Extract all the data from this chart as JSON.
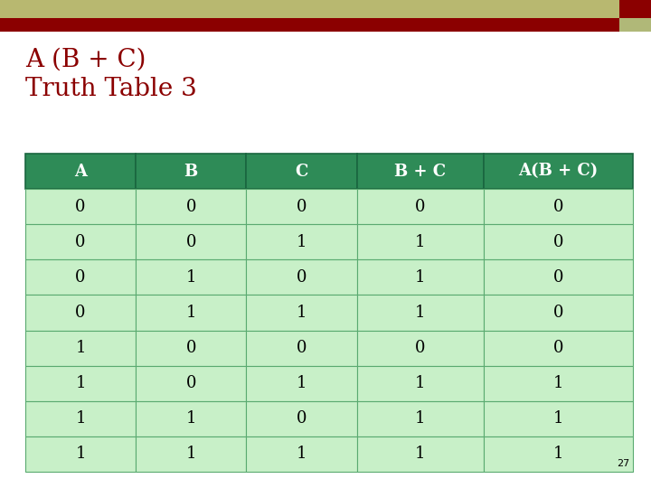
{
  "title_line1": "A (B + C)",
  "title_line2": "Truth Table 3",
  "title_color": "#8B0000",
  "header_labels": [
    "A",
    "B",
    "C",
    "B + C",
    "A(B + C)"
  ],
  "header_bg": "#2E8B57",
  "header_text_color": "#FFFFFF",
  "row_bg_light": "#C8F0C8",
  "row_text_color": "#000000",
  "rows": [
    [
      0,
      0,
      0,
      0,
      0
    ],
    [
      0,
      0,
      1,
      1,
      0
    ],
    [
      0,
      1,
      0,
      1,
      0
    ],
    [
      0,
      1,
      1,
      1,
      0
    ],
    [
      1,
      0,
      0,
      0,
      0
    ],
    [
      1,
      0,
      1,
      1,
      1
    ],
    [
      1,
      1,
      0,
      1,
      1
    ],
    [
      1,
      1,
      1,
      1,
      1
    ]
  ],
  "page_number": "27",
  "top_bar_olive": "#B8B870",
  "top_bar_red": "#8B0000",
  "top_bar_olive_small": "#B0B878",
  "background_color": "#FFFFFF",
  "figure_width": 7.2,
  "figure_height": 5.4,
  "dpi": 100
}
